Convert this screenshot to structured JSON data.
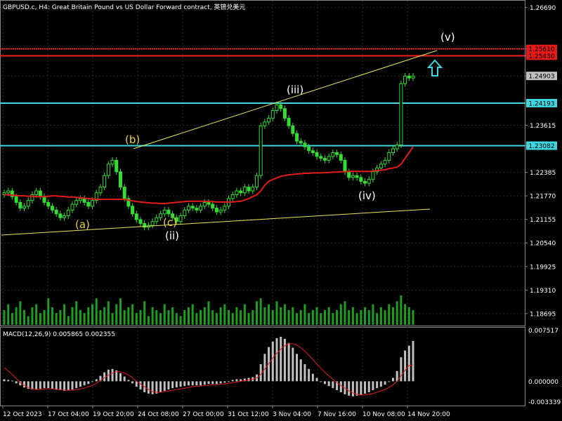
{
  "header": {
    "title": "GBPUSD.c, H4:  Great Britain Pound vs US Dollar Forward contract, 英镑兑美元"
  },
  "price_scale": {
    "ticks": [
      "1.26690",
      "1.25610",
      "1.25430",
      "1.24903",
      "1.24193",
      "1.23615",
      "1.23082",
      "1.22385",
      "1.21770",
      "1.21155",
      "1.20540",
      "1.19925",
      "1.19310",
      "1.18695"
    ],
    "highlighted": [
      {
        "value": "1.25610",
        "bg": "#e31b1b"
      },
      {
        "value": "1.25430",
        "bg": "#e31b1b"
      },
      {
        "value": "1.24903",
        "bg": "#c0c0c0"
      },
      {
        "value": "1.24193",
        "bg": "#3fd6e0"
      },
      {
        "value": "1.23082",
        "bg": "#3fd6e0"
      }
    ]
  },
  "levels": [
    {
      "name": "resistance-1",
      "price": 1.2561,
      "color": "#ff2020",
      "style": "dotted"
    },
    {
      "name": "resistance-2",
      "price": 1.2543,
      "color": "#ff2020",
      "style": "solid"
    },
    {
      "name": "support-1",
      "price": 1.24193,
      "color": "#3fd6e0",
      "style": "solid"
    },
    {
      "name": "support-2",
      "price": 1.23082,
      "color": "#3fd6e0",
      "style": "solid"
    }
  ],
  "wave_labels": [
    {
      "text": "(a)",
      "color": "#e8d23a"
    },
    {
      "text": "(b)",
      "color": "#e8d23a"
    },
    {
      "text": "(c)",
      "color": "#e8d23a"
    },
    {
      "text": "(ii)",
      "color": "#ffffff"
    },
    {
      "text": "(iii)",
      "color": "#ffffff"
    },
    {
      "text": "(iv)",
      "color": "#ffffff"
    },
    {
      "text": "(v)",
      "color": "#ffffff"
    }
  ],
  "time_axis": [
    "12 Oct 2023",
    "17 Oct 04:00",
    "19 Oct 20:00",
    "24 Oct 08:00",
    "27 Oct 00:00",
    "31 Oct 12:00",
    "3 Nov 04:00",
    "7 Nov 16:00",
    "10 Nov 08:00",
    "14 Nov 20:00"
  ],
  "macd": {
    "label": "MACD(12,26,9) 0.005865 0.002355",
    "ticks": [
      "0.007517",
      "0.000000",
      "-0.003339"
    ]
  },
  "colors": {
    "candle": "#33dd33",
    "ma": "#e31b1b",
    "trendline": "#e8e860",
    "volume": "#1e9e1e",
    "macd_hist": "#c0c0c0",
    "macd_signal": "#e31b1b",
    "arrow": "#3fd6e0"
  },
  "chart_data": {
    "type": "candlestick",
    "symbol": "GBPUSD.c",
    "timeframe": "H4",
    "ylim": [
      1.184,
      1.2685
    ],
    "close_path": [
      1.2185,
      1.219,
      1.2175,
      1.216,
      1.2145,
      1.215,
      1.2165,
      1.218,
      1.219,
      1.2175,
      1.216,
      1.215,
      1.214,
      1.213,
      1.212,
      1.2125,
      1.214,
      1.2155,
      1.2165,
      1.217,
      1.216,
      1.215,
      1.2165,
      1.2185,
      1.22,
      1.223,
      1.226,
      1.227,
      1.224,
      1.22,
      1.217,
      1.215,
      1.213,
      1.2115,
      1.2105,
      1.2095,
      1.21,
      1.211,
      1.212,
      1.213,
      1.214,
      1.213,
      1.212,
      1.211,
      1.2125,
      1.214,
      1.215,
      1.2145,
      1.214,
      1.215,
      1.216,
      1.2155,
      1.2145,
      1.2135,
      1.214,
      1.215,
      1.217,
      1.218,
      1.219,
      1.2185,
      1.22,
      1.219,
      1.22,
      1.223,
      1.236,
      1.237,
      1.238,
      1.24,
      1.2415,
      1.2405,
      1.238,
      1.236,
      1.234,
      1.232,
      1.2315,
      1.2305,
      1.2295,
      1.229,
      1.228,
      1.2275,
      1.227,
      1.228,
      1.229,
      1.2285,
      1.227,
      1.224,
      1.2225,
      1.223,
      1.2225,
      1.2215,
      1.221,
      1.222,
      1.224,
      1.225,
      1.226,
      1.227,
      1.229,
      1.23,
      1.231,
      1.247,
      1.249,
      1.2485,
      1.249
    ],
    "moving_average": [
      1.218,
      1.218,
      1.2179,
      1.2178,
      1.2177,
      1.2177,
      1.2176,
      1.2176,
      1.2175,
      1.2175,
      1.2175,
      1.2176,
      1.2177,
      1.2177,
      1.2176,
      1.2175,
      1.2174,
      1.2174,
      1.2173,
      1.2172,
      1.2171,
      1.217,
      1.2169,
      1.2168,
      1.2168,
      1.2168,
      1.2168,
      1.2168,
      1.2168,
      1.2168,
      1.2168,
      1.2166,
      1.2164,
      1.2162,
      1.2161,
      1.216,
      1.2159,
      1.2158,
      1.2158,
      1.2157,
      1.2157,
      1.2158,
      1.2159,
      1.216,
      1.2161,
      1.2162,
      1.2163,
      1.2163,
      1.2163,
      1.2163,
      1.2163,
      1.2162,
      1.2162,
      1.2161,
      1.2161,
      1.2161,
      1.2161,
      1.2161,
      1.2162,
      1.2163,
      1.2166,
      1.217,
      1.2175,
      1.218,
      1.219,
      1.2205,
      1.2215,
      1.222,
      1.2224,
      1.2228,
      1.223,
      1.2232,
      1.2233,
      1.2234,
      1.2235,
      1.2236,
      1.2236,
      1.2237,
      1.2237,
      1.2237,
      1.2238,
      1.2238,
      1.2239,
      1.2239,
      1.224,
      1.224,
      1.2241,
      1.2241,
      1.2241,
      1.2241,
      1.2241,
      1.2241,
      1.2242,
      1.2243,
      1.2244,
      1.2245,
      1.2248,
      1.225,
      1.2252,
      1.226,
      1.2275,
      1.229,
      1.2305
    ],
    "volume": [
      0.5,
      0.7,
      0.4,
      0.6,
      0.8,
      0.5,
      0.3,
      0.6,
      0.7,
      0.4,
      0.5,
      0.9,
      0.6,
      0.4,
      0.5,
      0.7,
      0.3,
      0.6,
      0.8,
      0.5,
      0.4,
      0.6,
      0.7,
      0.9,
      0.5,
      0.6,
      0.8,
      0.4,
      0.7,
      0.9,
      0.5,
      0.6,
      0.7,
      0.4,
      0.5,
      0.8,
      0.3,
      0.6,
      0.5,
      0.4,
      0.7,
      0.5,
      0.6,
      0.4,
      0.3,
      0.5,
      0.6,
      0.7,
      0.4,
      0.5,
      0.6,
      0.8,
      0.5,
      0.4,
      0.6,
      0.7,
      0.5,
      0.4,
      0.6,
      0.5,
      0.7,
      0.4,
      0.5,
      0.8,
      0.9,
      0.6,
      0.7,
      0.5,
      0.8,
      0.6,
      0.7,
      0.5,
      0.6,
      0.4,
      0.5,
      0.7,
      0.4,
      0.5,
      0.6,
      0.4,
      0.5,
      0.6,
      0.4,
      0.5,
      0.7,
      0.8,
      0.5,
      0.6,
      0.4,
      0.5,
      0.6,
      0.5,
      0.7,
      0.4,
      0.6,
      0.5,
      0.7,
      0.6,
      0.8,
      1.0,
      0.7,
      0.6,
      0.5
    ],
    "macd": [
      0.0003,
      0.0002,
      0.0001,
      -0.0003,
      -0.0006,
      -0.0009,
      -0.0011,
      -0.0012,
      -0.0012,
      -0.0011,
      -0.001,
      -0.001,
      -0.0011,
      -0.0012,
      -0.0013,
      -0.0014,
      -0.0013,
      -0.0012,
      -0.001,
      -0.0008,
      -0.0006,
      -0.0004,
      -0.0001,
      0.0003,
      0.0008,
      0.0013,
      0.0017,
      0.0018,
      0.0016,
      0.0012,
      0.0007,
      0.0002,
      -0.0003,
      -0.0008,
      -0.0012,
      -0.0016,
      -0.0018,
      -0.0019,
      -0.0018,
      -0.0016,
      -0.0014,
      -0.0012,
      -0.001,
      -0.0009,
      -0.0008,
      -0.0007,
      -0.0006,
      -0.0006,
      -0.0006,
      -0.0006,
      -0.0005,
      -0.0004,
      -0.0004,
      -0.0004,
      -0.0003,
      -0.0002,
      0.0,
      0.0002,
      0.0003,
      0.0003,
      0.0004,
      0.0005,
      0.0006,
      0.001,
      0.0025,
      0.004,
      0.005,
      0.0058,
      0.0063,
      0.0065,
      0.0062,
      0.0056,
      0.0049,
      0.004,
      0.0032,
      0.0025,
      0.0018,
      0.0011,
      0.0005,
      0.0,
      -0.0004,
      -0.0007,
      -0.001,
      -0.0013,
      -0.0016,
      -0.0019,
      -0.0021,
      -0.0022,
      -0.0021,
      -0.002,
      -0.0018,
      -0.0016,
      -0.0013,
      -0.001,
      -0.0008,
      -0.0005,
      -0.0001,
      0.0005,
      0.0015,
      0.0035,
      0.0045,
      0.0052,
      0.0059
    ],
    "macd_signal": [
      0.002,
      0.0015,
      0.001,
      0.0004,
      -0.0002,
      -0.0006,
      -0.0009,
      -0.0011,
      -0.0012,
      -0.0012,
      -0.0011,
      -0.0011,
      -0.0011,
      -0.0012,
      -0.0012,
      -0.0013,
      -0.0013,
      -0.0013,
      -0.0012,
      -0.0011,
      -0.001,
      -0.0008,
      -0.0006,
      -0.0003,
      0.0001,
      0.0005,
      0.0009,
      0.0012,
      0.0014,
      0.0014,
      0.0012,
      0.0009,
      0.0005,
      0.0,
      -0.0004,
      -0.0008,
      -0.0012,
      -0.0015,
      -0.0016,
      -0.0016,
      -0.0015,
      -0.0014,
      -0.0013,
      -0.0012,
      -0.0011,
      -0.001,
      -0.0009,
      -0.0008,
      -0.0007,
      -0.0007,
      -0.0006,
      -0.0006,
      -0.0005,
      -0.0005,
      -0.0004,
      -0.0004,
      -0.0003,
      -0.0002,
      -0.0001,
      0.0,
      0.0001,
      0.0002,
      0.0003,
      0.0005,
      0.001,
      0.0018,
      0.0026,
      0.0034,
      0.0041,
      0.0047,
      0.0052,
      0.0055,
      0.0055,
      0.0053,
      0.0049,
      0.0044,
      0.0038,
      0.0032,
      0.0025,
      0.0019,
      0.0013,
      0.0008,
      0.0003,
      -0.0002,
      -0.0006,
      -0.001,
      -0.0014,
      -0.0017,
      -0.0019,
      -0.002,
      -0.002,
      -0.0019,
      -0.0018,
      -0.0016,
      -0.0014,
      -0.0012,
      -0.0009,
      -0.0005,
      0.0,
      0.0008,
      0.0016,
      0.0023,
      0.0024
    ],
    "macd_ylim": [
      -0.003339,
      0.007517
    ]
  }
}
